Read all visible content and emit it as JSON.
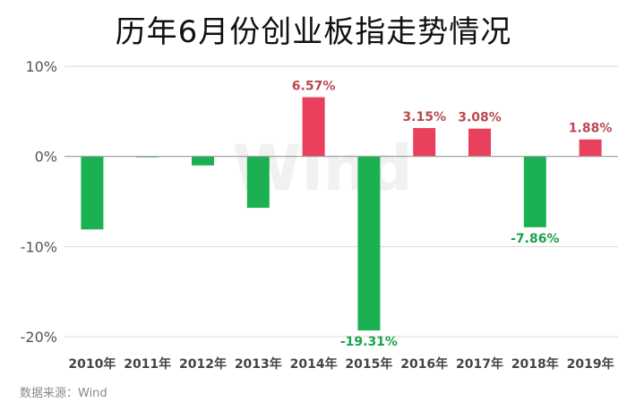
{
  "title": "历年6月份创业板指走势情况",
  "source": "数据来源：Wind",
  "watermark": "Wind",
  "colors": {
    "positive": "#e8405d",
    "negative": "#1bb152",
    "positive_label": "#b84a50",
    "negative_label": "#1aa14c",
    "grid": "#d9d9d9"
  },
  "chart_data": {
    "type": "bar",
    "title": "历年6月份创业板指走势情况",
    "xlabel": "",
    "ylabel": "",
    "ylim": [
      -20,
      10
    ],
    "yticks": [
      10,
      0,
      -10,
      -20
    ],
    "ytick_labels": [
      "10%",
      "0%",
      "-10%",
      "-20%"
    ],
    "grid": true,
    "categories": [
      "2010年",
      "2011年",
      "2012年",
      "2013年",
      "2014年",
      "2015年",
      "2016年",
      "2017年",
      "2018年",
      "2019年"
    ],
    "values": [
      -8.1,
      -0.1,
      -1.0,
      -5.7,
      6.57,
      -19.31,
      3.15,
      3.08,
      -7.86,
      1.88
    ],
    "data_labels": [
      "",
      "",
      "",
      "",
      "6.57%",
      "-19.31%",
      "3.15%",
      "3.08%",
      "-7.86%",
      "1.88%"
    ]
  }
}
